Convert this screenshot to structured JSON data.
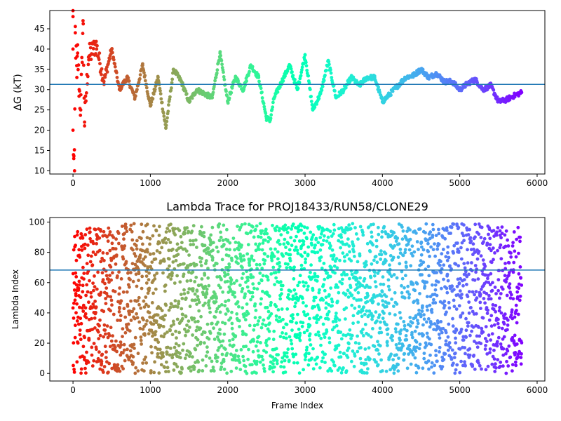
{
  "chart_data": [
    {
      "type": "scatter",
      "title": "",
      "xlabel": "",
      "ylabel": "ΔG (kT)",
      "xlim": [
        -300,
        6100
      ],
      "ylim": [
        9.2,
        49.5
      ],
      "xticks": [
        0,
        1000,
        2000,
        3000,
        4000,
        5000,
        6000
      ],
      "yticks": [
        10,
        15,
        20,
        25,
        30,
        35,
        40,
        45
      ],
      "hline": 31.3,
      "hline_color": "#1f77b4",
      "colormap": "rainbow (reversed: red at frame 0, violet at last frame)",
      "x_max": 5800,
      "grid": false,
      "series": [
        {
          "points_sampled": [
            [
              0,
              48
            ],
            [
              0,
              40
            ],
            [
              0,
              20
            ],
            [
              10,
              13
            ],
            [
              20,
              10
            ],
            [
              30,
              44
            ],
            [
              50,
              33
            ],
            [
              60,
              39
            ],
            [
              80,
              30
            ],
            [
              100,
              25
            ],
            [
              130,
              47
            ],
            [
              150,
              22
            ],
            [
              200,
              38
            ],
            [
              300,
              41
            ],
            [
              400,
              32
            ],
            [
              500,
              40
            ],
            [
              600,
              30
            ],
            [
              700,
              33
            ],
            [
              800,
              28
            ],
            [
              900,
              36
            ],
            [
              1000,
              26
            ],
            [
              1100,
              33
            ],
            [
              1200,
              20.5
            ],
            [
              1300,
              35
            ],
            [
              1400,
              32
            ],
            [
              1500,
              27
            ],
            [
              1600,
              30
            ],
            [
              1700,
              29
            ],
            [
              1800,
              28
            ],
            [
              1900,
              39
            ],
            [
              2000,
              27
            ],
            [
              2100,
              33
            ],
            [
              2200,
              30
            ],
            [
              2300,
              36
            ],
            [
              2400,
              33
            ],
            [
              2500,
              23
            ],
            [
              2550,
              22.5
            ],
            [
              2600,
              28
            ],
            [
              2700,
              32
            ],
            [
              2800,
              36
            ],
            [
              2900,
              30
            ],
            [
              3000,
              38.5
            ],
            [
              3100,
              25
            ],
            [
              3200,
              29
            ],
            [
              3300,
              37
            ],
            [
              3400,
              28
            ],
            [
              3500,
              30
            ],
            [
              3600,
              33
            ],
            [
              3700,
              31
            ],
            [
              3800,
              33
            ],
            [
              3900,
              33
            ],
            [
              4000,
              27
            ],
            [
              4100,
              29
            ],
            [
              4200,
              31
            ],
            [
              4300,
              33
            ],
            [
              4400,
              33.5
            ],
            [
              4500,
              35
            ],
            [
              4600,
              33
            ],
            [
              4700,
              34
            ],
            [
              4800,
              32
            ],
            [
              4900,
              32
            ],
            [
              5000,
              30
            ],
            [
              5100,
              31.5
            ],
            [
              5200,
              32.5
            ],
            [
              5300,
              30
            ],
            [
              5400,
              31
            ],
            [
              5500,
              27
            ],
            [
              5600,
              27.5
            ],
            [
              5700,
              28.5
            ],
            [
              5800,
              29.3
            ]
          ]
        }
      ]
    },
    {
      "type": "scatter",
      "title": "Lambda Trace for PROJ18433/RUN58/CLONE29",
      "xlabel": "Frame Index",
      "ylabel": "Lambda Index",
      "xlim": [
        -300,
        6100
      ],
      "ylim": [
        -5,
        103
      ],
      "xticks": [
        0,
        1000,
        2000,
        3000,
        4000,
        5000,
        6000
      ],
      "yticks": [
        0,
        20,
        40,
        60,
        80,
        100
      ],
      "hline": 68.3,
      "hline_color": "#1f77b4",
      "colormap": "rainbow (reversed: red at frame 0, violet at last frame)",
      "x_max": 5800,
      "y_range": [
        0,
        99
      ],
      "grid": false
    }
  ]
}
